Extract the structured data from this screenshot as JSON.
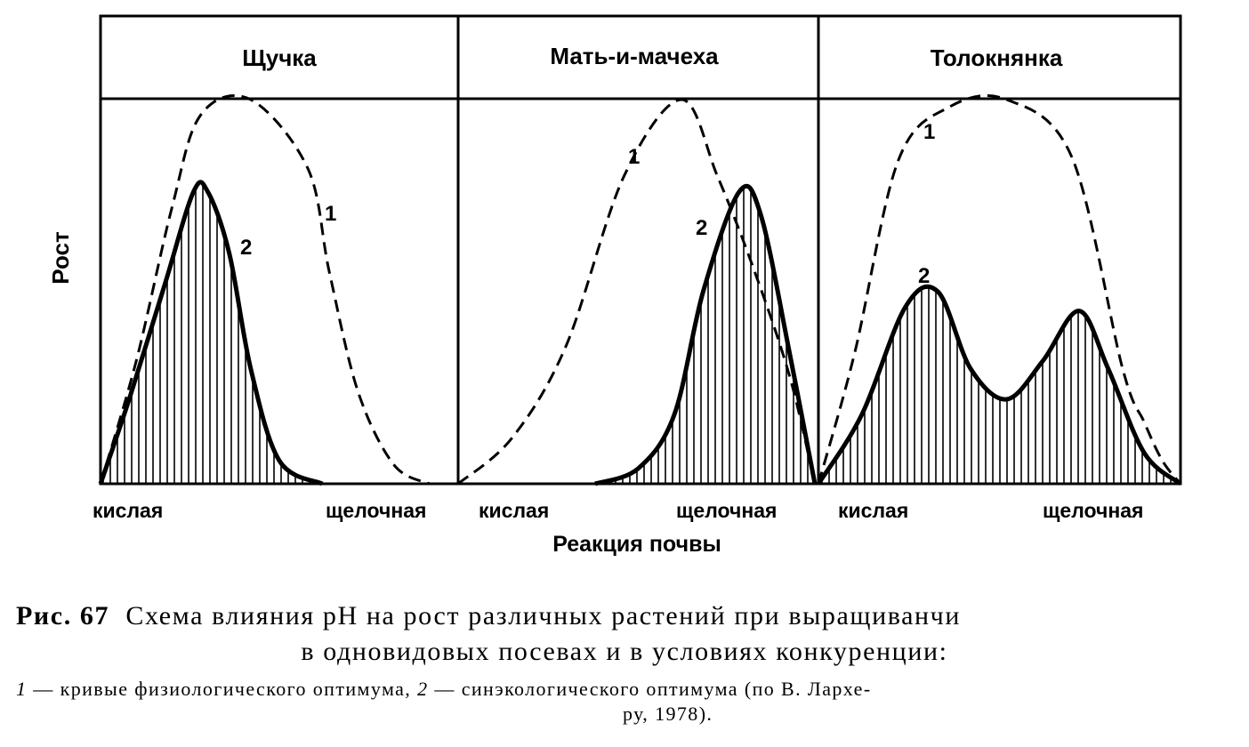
{
  "chart_data": {
    "type": "area",
    "ylabel": "Рост",
    "xlabel": "Реакция почвы",
    "x_scale": "kislaya (acid) → shchelochnaya (alkaline), 0 to 1",
    "curve_legend": [
      "1",
      "2"
    ],
    "panels": [
      {
        "title": "Щучка",
        "x_left_label": "кислая",
        "x_right_label": "щелочная",
        "series": [
          {
            "name": "1",
            "style": "dashed",
            "points": [
              [
                0.0,
                0.0
              ],
              [
                0.1,
                0.32
              ],
              [
                0.2,
                0.72
              ],
              [
                0.28,
                0.96
              ],
              [
                0.42,
                1.0
              ],
              [
                0.58,
                0.82
              ],
              [
                0.64,
                0.55
              ],
              [
                0.72,
                0.24
              ],
              [
                0.82,
                0.05
              ],
              [
                0.92,
                0.0
              ]
            ]
          },
          {
            "name": "2",
            "style": "solid-hatched",
            "points": [
              [
                0.0,
                0.0
              ],
              [
                0.08,
                0.22
              ],
              [
                0.18,
                0.52
              ],
              [
                0.26,
                0.76
              ],
              [
                0.3,
                0.76
              ],
              [
                0.36,
                0.6
              ],
              [
                0.42,
                0.3
              ],
              [
                0.5,
                0.06
              ],
              [
                0.62,
                0.0
              ]
            ]
          }
        ]
      },
      {
        "title": "Мать-и-мачеха",
        "x_left_label": "кислая",
        "x_right_label": "щелочная",
        "series": [
          {
            "name": "1",
            "style": "dashed",
            "points": [
              [
                0.0,
                0.0
              ],
              [
                0.15,
                0.12
              ],
              [
                0.3,
                0.36
              ],
              [
                0.46,
                0.8
              ],
              [
                0.62,
                1.0
              ],
              [
                0.72,
                0.8
              ],
              [
                0.82,
                0.56
              ],
              [
                0.92,
                0.28
              ],
              [
                0.99,
                0.0
              ]
            ]
          },
          {
            "name": "2",
            "style": "solid-hatched",
            "points": [
              [
                0.38,
                0.0
              ],
              [
                0.5,
                0.04
              ],
              [
                0.6,
                0.18
              ],
              [
                0.68,
                0.5
              ],
              [
                0.78,
                0.76
              ],
              [
                0.84,
                0.7
              ],
              [
                0.92,
                0.34
              ],
              [
                0.99,
                0.0
              ]
            ]
          }
        ]
      },
      {
        "title": "Толокнянка",
        "x_left_label": "кислая",
        "x_right_label": "щелочная",
        "series": [
          {
            "name": "1",
            "style": "dashed",
            "points": [
              [
                0.0,
                0.0
              ],
              [
                0.1,
                0.34
              ],
              [
                0.22,
                0.84
              ],
              [
                0.36,
                0.98
              ],
              [
                0.52,
                1.0
              ],
              [
                0.7,
                0.85
              ],
              [
                0.84,
                0.3
              ],
              [
                0.9,
                0.16
              ],
              [
                0.95,
                0.06
              ],
              [
                1.0,
                0.0
              ]
            ]
          },
          {
            "name": "2",
            "style": "solid-hatched",
            "points": [
              [
                0.0,
                0.0
              ],
              [
                0.12,
                0.18
              ],
              [
                0.24,
                0.46
              ],
              [
                0.33,
                0.5
              ],
              [
                0.42,
                0.3
              ],
              [
                0.52,
                0.22
              ],
              [
                0.62,
                0.32
              ],
              [
                0.72,
                0.45
              ],
              [
                0.8,
                0.3
              ],
              [
                0.9,
                0.08
              ],
              [
                1.0,
                0.0
              ]
            ]
          }
        ]
      }
    ]
  },
  "caption": {
    "figure_label": "Рис. 67",
    "title_line1": "Схема влияния рН на рост различных растений при выращиванчи",
    "title_line2": "в одновидовых посевах и в условиях конкуренции:",
    "legend_num1": "1",
    "legend_text1": " — кривые физиологического оптимума, ",
    "legend_num2": "2",
    "legend_text2": " — синэкологического оптимума (по В. Лархе-",
    "legend_line4": "ру, 1978)."
  }
}
